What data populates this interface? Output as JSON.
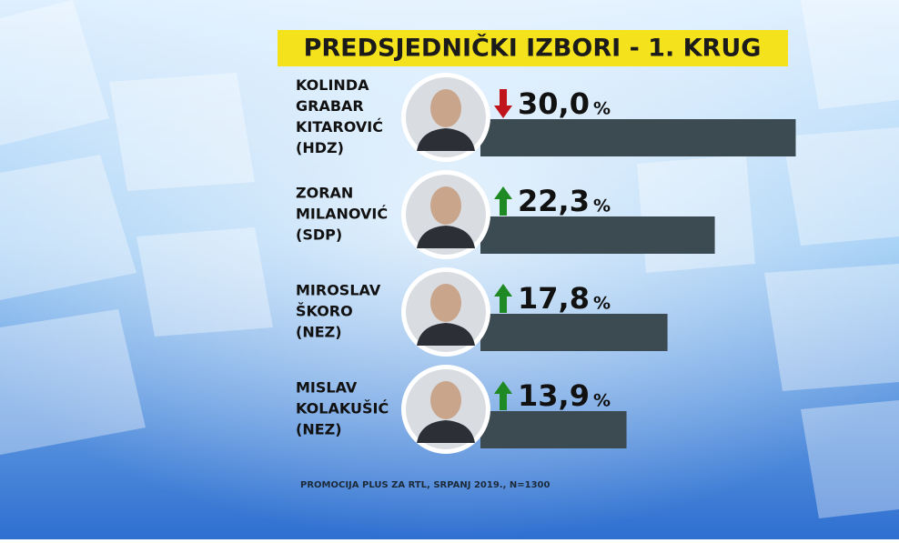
{
  "chart_data": {
    "type": "bar",
    "title": "PREDSJEDNIČKI IZBORI - 1. KRUG",
    "categories": [
      [
        "KOLINDA",
        "GRABAR",
        "KITAROVIĆ",
        "(HDZ)"
      ],
      [
        "ZORAN",
        "MILANOVIĆ",
        "(SDP)"
      ],
      [
        "MIROSLAV",
        "ŠKORO",
        "(NEZ)"
      ],
      [
        "MISLAV",
        "KOLAKUŠIĆ",
        "(NEZ)"
      ]
    ],
    "values": [
      30.0,
      22.3,
      17.8,
      13.9
    ],
    "value_labels": [
      "30,0",
      "22,3",
      "17,8",
      "13,9"
    ],
    "unit": "%",
    "trend": [
      "down",
      "up",
      "up",
      "up"
    ],
    "color": "#3c4a52",
    "source": "PROMOCIJA PLUS ZA RTL, SRPANJ 2019., N=1300"
  }
}
